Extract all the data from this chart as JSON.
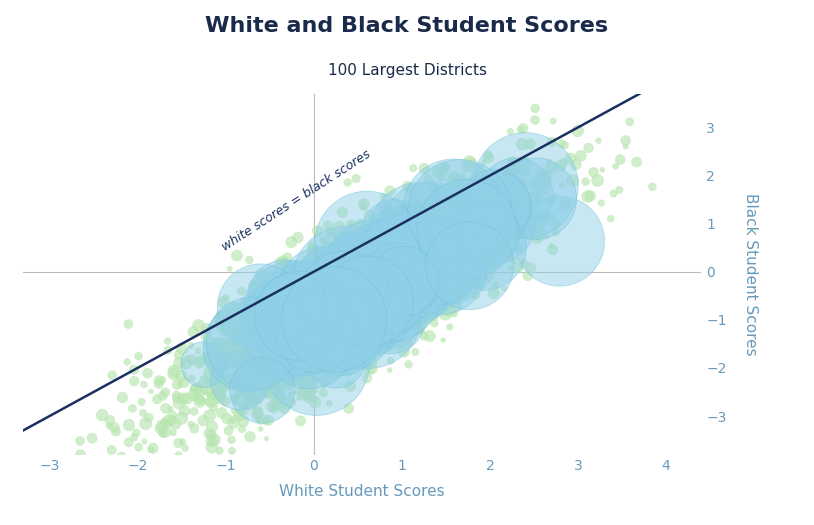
{
  "title": "White and Black Student Scores",
  "subtitle": "100 Largest Districts",
  "xlabel": "White Student Scores",
  "ylabel": "Black Student Scores",
  "xlim": [
    -3.3,
    4.4
  ],
  "ylim": [
    -3.8,
    3.7
  ],
  "xticks": [
    -3,
    -2,
    -1,
    0,
    1,
    2,
    3,
    4
  ],
  "yticks": [
    -3,
    -2,
    -1,
    0,
    1,
    2,
    3
  ],
  "diagonal_label": "white scores = black scores",
  "bg_color": "#ffffff",
  "small_dot_color": "#b8e6b0",
  "large_dot_color": "#90d0e8",
  "small_dot_alpha": 0.65,
  "large_dot_alpha": 0.5,
  "line_color": "#1a3060",
  "crosshair_color": "#bbbbbb",
  "title_color": "#1a2a4a",
  "axis_color": "#6699bb",
  "seed": 12,
  "n_small": 3000,
  "n_large": 100
}
